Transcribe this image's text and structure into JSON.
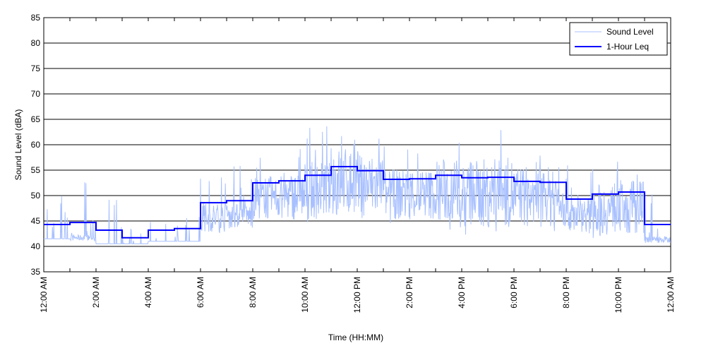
{
  "chart_data": {
    "type": "line",
    "title": "",
    "xlabel": "Time (HH:MM)",
    "ylabel": "Sound Level (dBA)",
    "ylim": [
      35,
      85
    ],
    "yticks": [
      35,
      40,
      45,
      50,
      55,
      60,
      65,
      70,
      75,
      80,
      85
    ],
    "xlim_hours": [
      0,
      24
    ],
    "xtick_labels": [
      "12:00 AM",
      "2:00 AM",
      "4:00 AM",
      "6:00 AM",
      "8:00 AM",
      "10:00 AM",
      "12:00 PM",
      "2:00 PM",
      "4:00 PM",
      "6:00 PM",
      "8:00 PM",
      "10:00 PM",
      "12:00 AM"
    ],
    "grid": "horizontal",
    "legend": {
      "placement": "top-right",
      "entries": [
        "Sound Level",
        "1-Hour Leq"
      ]
    },
    "colors": {
      "sound_level": "#a8c0ff",
      "leq": "#0000ff"
    },
    "series": [
      {
        "name": "1-Hour Leq",
        "hours": [
          0,
          1,
          2,
          3,
          4,
          5,
          6,
          7,
          8,
          9,
          10,
          11,
          12,
          13,
          14,
          15,
          16,
          17,
          18,
          19,
          20,
          21,
          22,
          23
        ],
        "values": [
          44.3,
          44.7,
          43.2,
          41.7,
          43.2,
          43.5,
          48.6,
          49.0,
          52.5,
          52.9,
          54.0,
          55.7,
          54.9,
          53.2,
          53.3,
          54.0,
          53.5,
          53.6,
          52.8,
          52.6,
          49.3,
          50.3,
          50.7,
          44.3
        ]
      },
      {
        "name": "Sound Level",
        "note_hourly_range_dBA": [
          [
            41.5,
            50
          ],
          [
            41,
            56
          ],
          [
            40.5,
            53
          ],
          [
            40.5,
            44
          ],
          [
            41,
            47
          ],
          [
            41,
            46
          ],
          [
            42,
            57
          ],
          [
            43,
            57
          ],
          [
            44,
            58
          ],
          [
            44,
            61
          ],
          [
            44,
            64
          ],
          [
            44,
            65
          ],
          [
            44,
            65
          ],
          [
            44,
            60
          ],
          [
            44,
            61
          ],
          [
            43,
            62
          ],
          [
            42,
            59
          ],
          [
            42,
            63
          ],
          [
            42,
            58
          ],
          [
            42,
            58
          ],
          [
            42,
            57
          ],
          [
            41,
            57
          ],
          [
            41,
            56
          ],
          [
            40.5,
            52
          ]
        ]
      }
    ]
  }
}
